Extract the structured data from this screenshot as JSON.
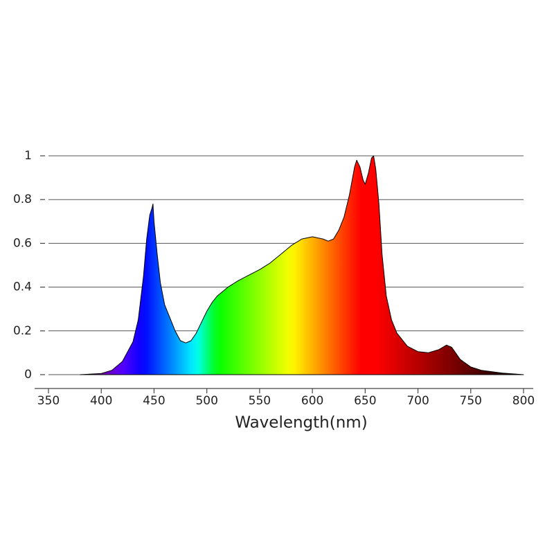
{
  "chart_data": {
    "type": "area",
    "xlabel": "Wavelength(nm)",
    "x": [
      380,
      400,
      410,
      420,
      430,
      435,
      440,
      443,
      446,
      448,
      449,
      450,
      453,
      456,
      460,
      465,
      470,
      475,
      480,
      485,
      490,
      495,
      500,
      505,
      510,
      520,
      530,
      540,
      550,
      560,
      570,
      580,
      590,
      600,
      610,
      615,
      620,
      625,
      630,
      635,
      640,
      642,
      645,
      648,
      650,
      653,
      656,
      658,
      660,
      663,
      666,
      670,
      675,
      680,
      690,
      700,
      710,
      720,
      727,
      732,
      740,
      750,
      760,
      780,
      800
    ],
    "y": [
      0,
      0.005,
      0.02,
      0.06,
      0.15,
      0.25,
      0.45,
      0.62,
      0.73,
      0.76,
      0.78,
      0.7,
      0.55,
      0.42,
      0.32,
      0.26,
      0.2,
      0.155,
      0.145,
      0.155,
      0.19,
      0.24,
      0.29,
      0.33,
      0.36,
      0.4,
      0.43,
      0.455,
      0.48,
      0.51,
      0.55,
      0.59,
      0.62,
      0.63,
      0.62,
      0.61,
      0.62,
      0.66,
      0.72,
      0.82,
      0.95,
      0.98,
      0.95,
      0.89,
      0.87,
      0.92,
      0.99,
      1.0,
      0.94,
      0.78,
      0.55,
      0.36,
      0.25,
      0.19,
      0.13,
      0.105,
      0.1,
      0.115,
      0.135,
      0.125,
      0.07,
      0.035,
      0.02,
      0.007,
      0
    ],
    "xlim": [
      350,
      800
    ],
    "ylim": [
      0,
      1
    ],
    "xticks": [
      350,
      400,
      450,
      500,
      550,
      600,
      650,
      700,
      750,
      800
    ],
    "yticks": [
      0,
      0.2,
      0.4,
      0.6,
      0.8,
      1
    ],
    "grid": true,
    "line_color": "#000000"
  }
}
